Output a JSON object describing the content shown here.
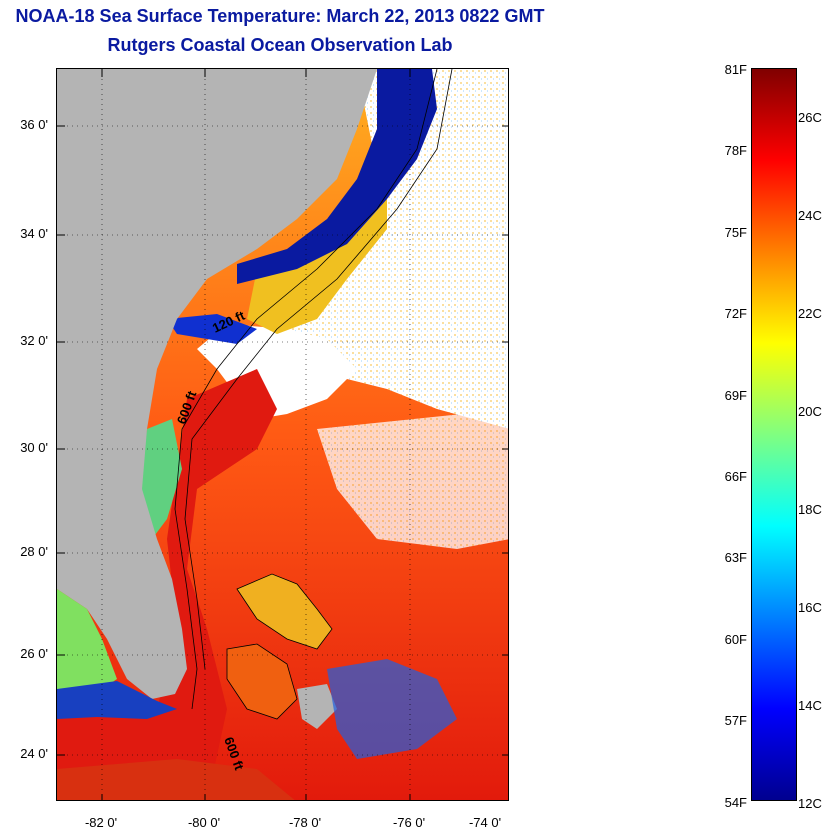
{
  "title": "NOAA-18 Sea Surface Temperature:  March 22, 2013 0822 GMT",
  "subtitle": "Rutgers Coastal Ocean Observation Lab",
  "map": {
    "latitude_ticks": [
      "36 0'",
      "34 0'",
      "32 0'",
      "30 0'",
      "28 0'",
      "26 0'",
      "24 0'"
    ],
    "longitude_ticks": [
      "-82 0'",
      "-80 0'",
      "-78 0'",
      "-76 0'",
      "-74 0'"
    ],
    "contour_labels": [
      "120 ft",
      "600 ft",
      "600 ft"
    ],
    "colors": {
      "land": "#b4b4b4",
      "cloud": "#ffffff",
      "cold": "#0a1aa0",
      "warm": "#e02010"
    }
  },
  "colorbar": {
    "fahrenheit_labels": [
      "81F",
      "78F",
      "75F",
      "72F",
      "69F",
      "66F",
      "63F",
      "60F",
      "57F",
      "54F"
    ],
    "celsius_labels": [
      "26C",
      "24C",
      "22C",
      "20C",
      "18C",
      "16C",
      "14C",
      "12C"
    ],
    "colors": [
      "#00008f",
      "#0000ff",
      "#0080ff",
      "#00ffff",
      "#80ff80",
      "#ffff00",
      "#ff8000",
      "#ff0000",
      "#800000"
    ]
  }
}
